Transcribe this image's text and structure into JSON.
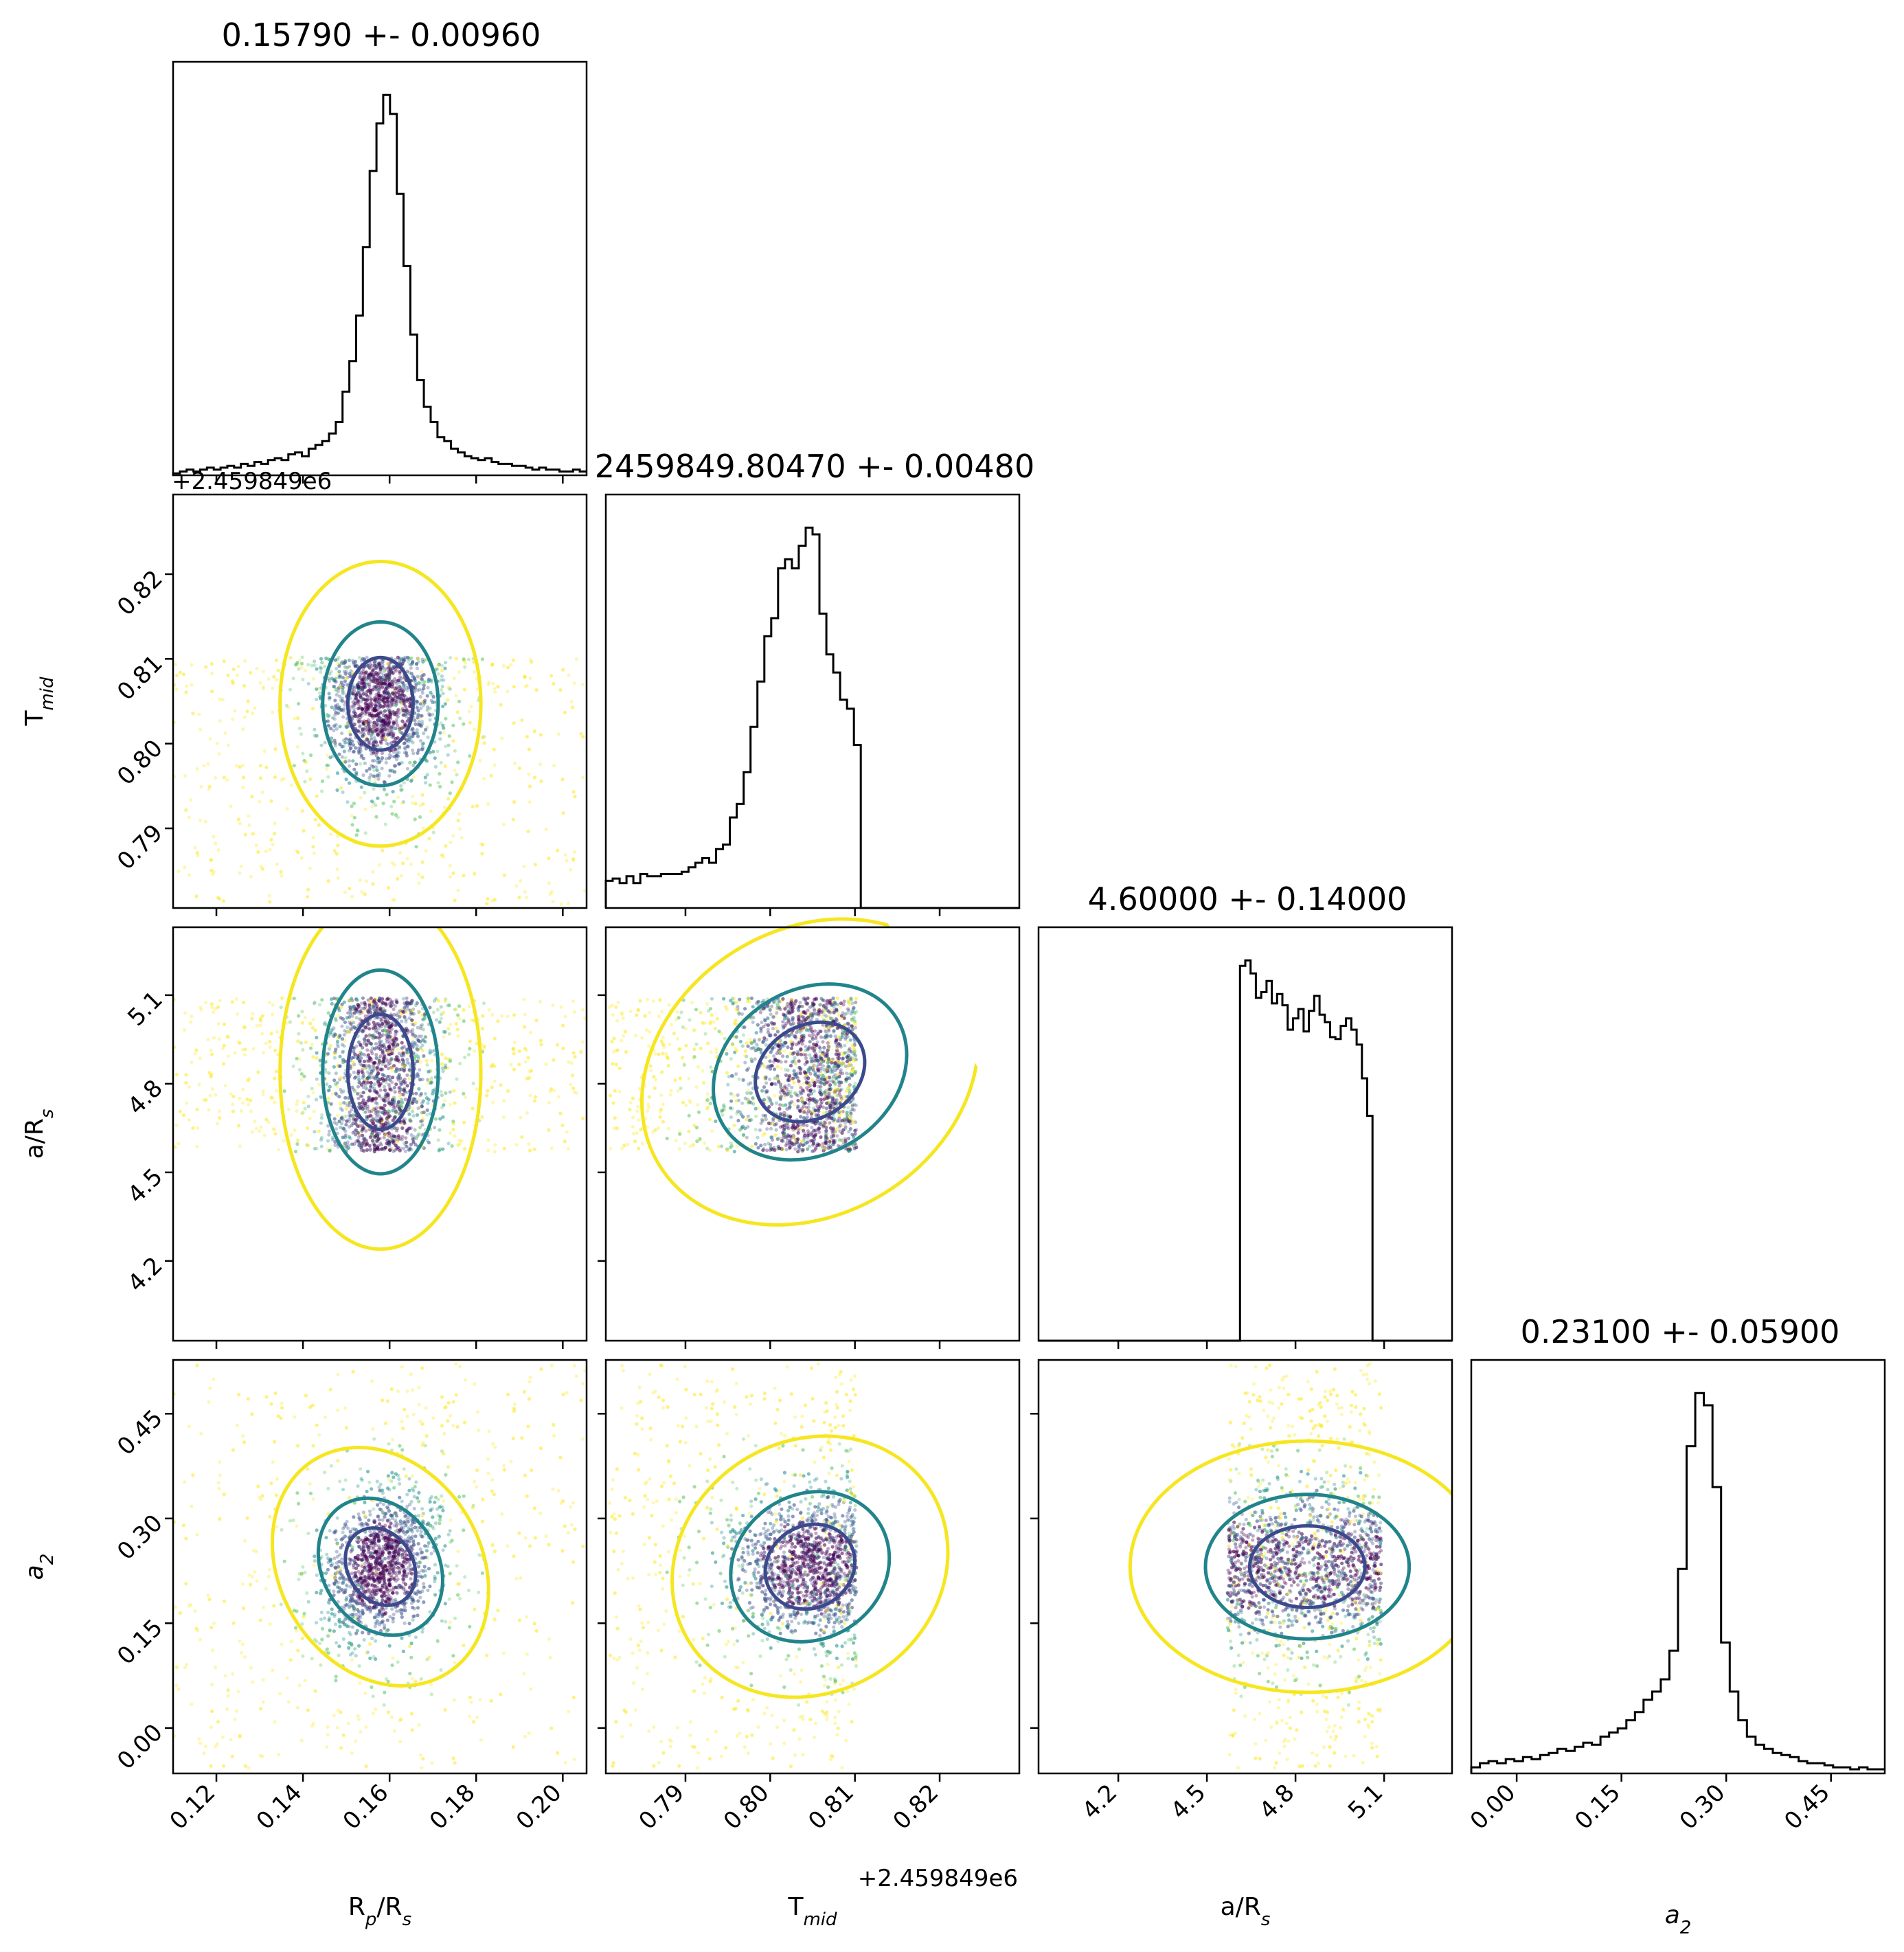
{
  "chart_data": {
    "type": "corner",
    "params": [
      {
        "id": "rp",
        "label": "R_p/R_s",
        "range": [
          0.11,
          0.2055
        ],
        "ticks": [
          0.12,
          0.14,
          0.16,
          0.18,
          0.2
        ],
        "tick_labels": [
          "0.12",
          "0.14",
          "0.16",
          "0.18",
          "0.20"
        ]
      },
      {
        "id": "tmid",
        "label": "T_mid",
        "range": [
          0.7806,
          0.8294
        ],
        "ticks": [
          0.79,
          0.8,
          0.81,
          0.82
        ],
        "tick_labels": [
          "0.79",
          "0.80",
          "0.81",
          "0.82"
        ],
        "offset_text": "+2.459849e6"
      },
      {
        "id": "ars",
        "label": "a/R_s",
        "range": [
          3.93,
          5.33
        ],
        "ticks": [
          4.2,
          4.5,
          4.8,
          5.1
        ],
        "tick_labels": [
          "4.2",
          "4.5",
          "4.8",
          "5.1"
        ]
      },
      {
        "id": "a2",
        "label": "a_2",
        "range": [
          -0.065,
          0.527
        ],
        "ticks": [
          0.0,
          0.15,
          0.3,
          0.45
        ],
        "tick_labels": [
          "0.00",
          "0.15",
          "0.30",
          "0.45"
        ]
      }
    ],
    "titles": [
      "0.15790 +- 0.00960",
      "2459849.80470 +- 0.00480",
      "4.60000 +- 0.14000",
      "0.23100 +- 0.05900"
    ],
    "axis_labels": {
      "rp": {
        "main": "R",
        "sub": "p",
        "tail": "/R",
        "sub2": "s"
      },
      "tmid": {
        "main": "T",
        "sub": "mid"
      },
      "ars": {
        "main": "a/R",
        "sub": "s"
      },
      "a2": {
        "main": "a",
        "sub": "2"
      }
    },
    "offset_texts": {
      "top_left": "+2.459849e6",
      "bottom": "+2.459849e6"
    },
    "marginals": {
      "rp": {
        "edges": [
          0.11,
          0.2055
        ],
        "counts": [
          1,
          2,
          3,
          2,
          3,
          4,
          3,
          4,
          5,
          4,
          6,
          5,
          7,
          6,
          8,
          9,
          8,
          11,
          12,
          10,
          14,
          16,
          18,
          22,
          28,
          44,
          60,
          84,
          120,
          160,
          185,
          200,
          190,
          148,
          110,
          74,
          50,
          36,
          28,
          20,
          18,
          14,
          12,
          10,
          9,
          8,
          9,
          7,
          6,
          6,
          5,
          5,
          4,
          3,
          4,
          3,
          3,
          2,
          2,
          3,
          2
        ]
      },
      "tmid": {
        "edges": [
          0.7806,
          0.8294
        ],
        "counts": [
          12,
          13,
          11,
          14,
          11,
          15,
          14,
          14,
          15,
          15,
          15,
          16,
          18,
          20,
          22,
          20,
          26,
          28,
          40,
          46,
          60,
          80,
          100,
          120,
          128,
          150,
          154,
          150,
          160,
          168,
          165,
          130,
          112,
          104,
          92,
          88,
          72,
          0,
          0,
          0,
          0,
          0,
          0,
          0,
          0,
          0,
          0,
          0,
          0,
          0,
          0,
          0,
          0,
          0,
          0,
          0,
          0,
          0,
          0,
          0
        ]
      },
      "ars": {
        "edges": [
          3.93,
          5.33
        ],
        "counts": [
          0,
          0,
          0,
          0,
          0,
          0,
          0,
          0,
          0,
          0,
          0,
          0,
          0,
          0,
          0,
          0,
          0,
          0,
          0,
          0,
          0,
          0,
          0,
          0,
          0,
          0,
          0,
          0,
          0,
          0,
          0,
          0,
          0,
          0,
          0,
          0,
          0,
          0,
          200,
          203,
          196,
          183,
          186,
          192,
          180,
          185,
          179,
          166,
          172,
          177,
          165,
          176,
          184,
          174,
          170,
          162,
          161,
          168,
          172,
          166,
          158,
          140,
          120,
          0,
          0,
          0,
          0,
          0,
          0,
          0,
          0,
          0,
          0,
          0,
          0,
          0,
          0,
          0
        ]
      },
      "a2": {
        "edges": [
          -0.065,
          0.527
        ],
        "counts": [
          3,
          5,
          6,
          5,
          7,
          6,
          8,
          7,
          9,
          10,
          12,
          11,
          13,
          15,
          14,
          18,
          20,
          22,
          26,
          30,
          36,
          40,
          46,
          60,
          100,
          160,
          186,
          180,
          140,
          64,
          40,
          26,
          18,
          14,
          12,
          10,
          9,
          8,
          6,
          5,
          5,
          4,
          3,
          3,
          2,
          3,
          2,
          2
        ]
      }
    },
    "peak_centers": {
      "rp": 0.1579,
      "tmid": 0.8047,
      "ars": 4.6,
      "a2": 0.231
    },
    "contour_levels": [
      "inner",
      "middle",
      "outer"
    ],
    "contour_colors": [
      "#3b4a8c",
      "#21848b",
      "#f6e620"
    ],
    "point_palette": [
      "#440154",
      "#3b528b",
      "#21918c",
      "#5ec962",
      "#fde725"
    ],
    "hist_color": "#000000",
    "grid": false
  }
}
